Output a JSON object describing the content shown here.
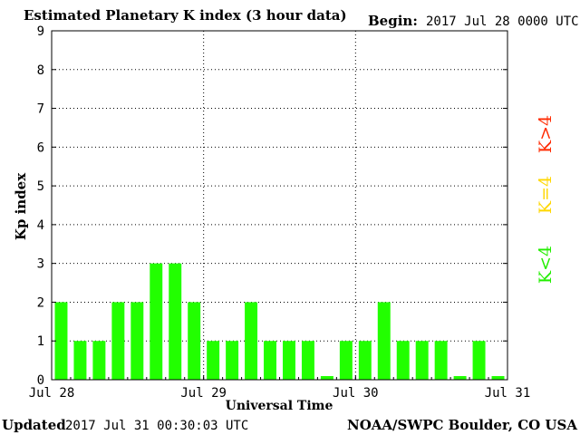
{
  "header": {
    "title": "Estimated Planetary K index (3 hour data)",
    "begin_label": "Begin:",
    "begin_value": "2017 Jul 28 0000 UTC"
  },
  "footer": {
    "updated_label": "Updated",
    "updated_value": "2017 Jul 31 00:30:03 UTC",
    "credit": "NOAA/SWPC Boulder, CO USA"
  },
  "legend": [
    {
      "label": "K>4",
      "color": "#ff2a00"
    },
    {
      "label": "K=4",
      "color": "#ffd700"
    },
    {
      "label": "K<4",
      "color": "#22ee00"
    }
  ],
  "chart_data": {
    "type": "bar",
    "title": "Estimated Planetary K index (3 hour data)",
    "xlabel": "Universal Time",
    "ylabel": "Kp index",
    "ylim": [
      0,
      9
    ],
    "y_ticks": [
      0,
      1,
      2,
      3,
      4,
      5,
      6,
      7,
      8,
      9
    ],
    "x_tick_labels": [
      "Jul 28",
      "Jul 29",
      "Jul 30",
      "Jul 31"
    ],
    "grid": true,
    "bar_color": "#22ff00",
    "series": [
      {
        "values": [
          2,
          1,
          1,
          2,
          2,
          3,
          3,
          2,
          1,
          1,
          2,
          1,
          1,
          1,
          0,
          1,
          1,
          2,
          1,
          1,
          1,
          0,
          1,
          0
        ]
      }
    ]
  }
}
